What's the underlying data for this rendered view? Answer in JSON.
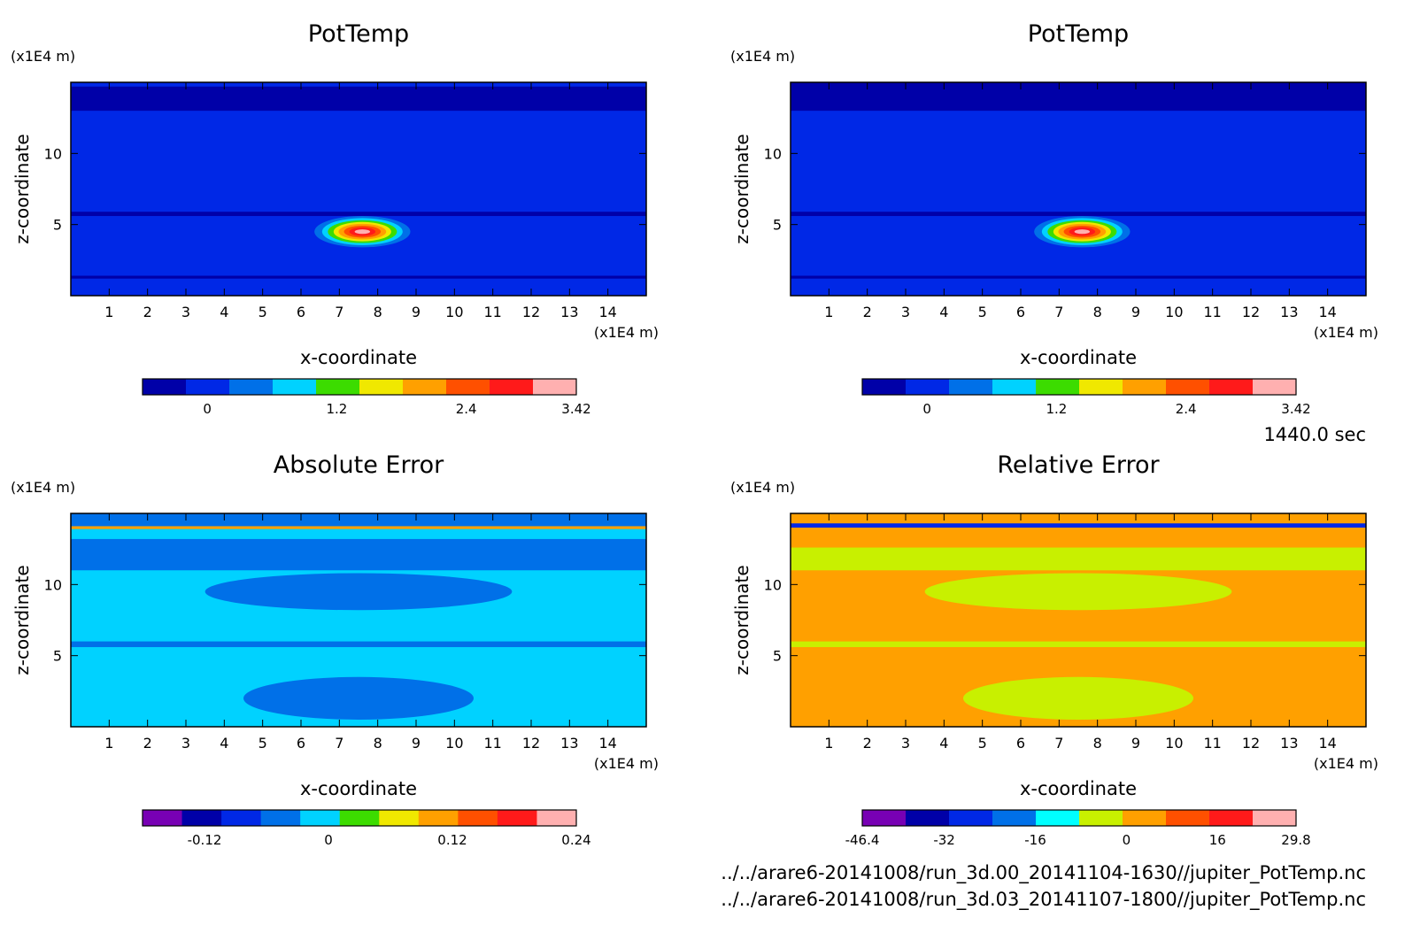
{
  "time_label": "1440.0 sec",
  "files": [
    "../../arare6-20141008/run_3d.00_20141104-1630//jupiter_PotTemp.nc",
    "../../arare6-20141008/run_3d.03_20141107-1800//jupiter_PotTemp.nc"
  ],
  "chart_data": [
    {
      "type": "heatmap",
      "title": "PotTemp",
      "xlabel": "x-coordinate",
      "ylabel": "z-coordinate",
      "x_unit": "(x1E4 m)",
      "y_unit": "(x1E4 m)",
      "xlim": [
        0,
        15
      ],
      "ylim": [
        0,
        15
      ],
      "x_ticks": [
        1,
        2,
        3,
        4,
        5,
        6,
        7,
        8,
        9,
        10,
        11,
        12,
        13,
        14
      ],
      "y_ticks": [
        5,
        10
      ],
      "colorbar": {
        "colors": [
          "#0000a8",
          "#0028e6",
          "#0070e8",
          "#00d2ff",
          "#3cdc00",
          "#f0e800",
          "#ffa000",
          "#ff5000",
          "#ff1a1a",
          "#ffb0b0"
        ],
        "tick_labels": [
          "0",
          "1.2",
          "2.4",
          "3.42"
        ],
        "tick_values": [
          0,
          1.2,
          2.4,
          3.42
        ],
        "range": [
          -0.6,
          3.42
        ]
      },
      "background": "#0028e6",
      "bands": [
        {
          "z": [
            13.0,
            14.7
          ],
          "color": "#0000a8"
        },
        {
          "z": [
            5.6,
            5.9
          ],
          "color": "#0000a8"
        },
        {
          "z": [
            1.2,
            1.4
          ],
          "color": "#0000a8"
        }
      ],
      "blobs": [
        {
          "x": 7.6,
          "z": 4.5,
          "rx": 1.25,
          "rz": 1.1,
          "color": "#0070e8"
        },
        {
          "x": 7.6,
          "z": 4.5,
          "rx": 1.05,
          "rz": 0.95,
          "color": "#00d2ff"
        },
        {
          "x": 7.6,
          "z": 4.5,
          "rx": 0.9,
          "rz": 0.8,
          "color": "#3cdc00"
        },
        {
          "x": 7.6,
          "z": 4.5,
          "rx": 0.75,
          "rz": 0.68,
          "color": "#f0e800"
        },
        {
          "x": 7.6,
          "z": 4.5,
          "rx": 0.62,
          "rz": 0.55,
          "color": "#ffa000"
        },
        {
          "x": 7.6,
          "z": 4.5,
          "rx": 0.48,
          "rz": 0.42,
          "color": "#ff5000"
        },
        {
          "x": 7.6,
          "z": 4.5,
          "rx": 0.34,
          "rz": 0.3,
          "color": "#ff1a1a"
        },
        {
          "x": 7.6,
          "z": 4.5,
          "rx": 0.2,
          "rz": 0.16,
          "color": "#ffb0b0"
        }
      ]
    },
    {
      "type": "heatmap",
      "title": "PotTemp",
      "xlabel": "x-coordinate",
      "ylabel": "z-coordinate",
      "x_unit": "(x1E4 m)",
      "y_unit": "(x1E4 m)",
      "xlim": [
        0,
        15
      ],
      "ylim": [
        0,
        15
      ],
      "x_ticks": [
        1,
        2,
        3,
        4,
        5,
        6,
        7,
        8,
        9,
        10,
        11,
        12,
        13,
        14
      ],
      "y_ticks": [
        5,
        10
      ],
      "colorbar": {
        "colors": [
          "#0000a8",
          "#0028e6",
          "#0070e8",
          "#00d2ff",
          "#3cdc00",
          "#f0e800",
          "#ffa000",
          "#ff5000",
          "#ff1a1a",
          "#ffb0b0"
        ],
        "tick_labels": [
          "0",
          "1.2",
          "2.4",
          "3.42"
        ],
        "tick_values": [
          0,
          1.2,
          2.4,
          3.42
        ],
        "range": [
          -0.6,
          3.42
        ]
      },
      "background": "#0028e6",
      "bands": [
        {
          "z": [
            13.0,
            15.0
          ],
          "color": "#0000a8"
        },
        {
          "z": [
            5.6,
            5.9
          ],
          "color": "#0000a8"
        },
        {
          "z": [
            1.2,
            1.4
          ],
          "color": "#0000a8"
        }
      ],
      "blobs": [
        {
          "x": 7.6,
          "z": 4.5,
          "rx": 1.25,
          "rz": 1.1,
          "color": "#0070e8"
        },
        {
          "x": 7.6,
          "z": 4.5,
          "rx": 1.05,
          "rz": 0.95,
          "color": "#00d2ff"
        },
        {
          "x": 7.6,
          "z": 4.5,
          "rx": 0.9,
          "rz": 0.8,
          "color": "#3cdc00"
        },
        {
          "x": 7.6,
          "z": 4.5,
          "rx": 0.75,
          "rz": 0.68,
          "color": "#f0e800"
        },
        {
          "x": 7.6,
          "z": 4.5,
          "rx": 0.62,
          "rz": 0.55,
          "color": "#ffa000"
        },
        {
          "x": 7.6,
          "z": 4.5,
          "rx": 0.48,
          "rz": 0.42,
          "color": "#ff5000"
        },
        {
          "x": 7.6,
          "z": 4.5,
          "rx": 0.34,
          "rz": 0.3,
          "color": "#ff1a1a"
        },
        {
          "x": 7.6,
          "z": 4.5,
          "rx": 0.2,
          "rz": 0.16,
          "color": "#ffb0b0"
        }
      ]
    },
    {
      "type": "heatmap",
      "title": "Absolute Error",
      "xlabel": "x-coordinate",
      "ylabel": "z-coordinate",
      "x_unit": "(x1E4 m)",
      "y_unit": "(x1E4 m)",
      "xlim": [
        0,
        15
      ],
      "ylim": [
        0,
        15
      ],
      "x_ticks": [
        1,
        2,
        3,
        4,
        5,
        6,
        7,
        8,
        9,
        10,
        11,
        12,
        13,
        14
      ],
      "y_ticks": [
        5,
        10
      ],
      "colorbar": {
        "colors": [
          "#7800b4",
          "#0000a8",
          "#0028e6",
          "#0070e8",
          "#00d2ff",
          "#3cdc00",
          "#f0e800",
          "#ffa000",
          "#ff5000",
          "#ff1a1a",
          "#ffb0b0"
        ],
        "tick_labels": [
          "-0.12",
          "0",
          "0.12",
          "0.24"
        ],
        "tick_values": [
          -0.12,
          0,
          0.12,
          0.24
        ],
        "range": [
          -0.18,
          0.24
        ]
      },
      "background": "#00d2ff",
      "bands": [
        {
          "z": [
            14.1,
            15.0
          ],
          "color": "#0070e8"
        },
        {
          "z": [
            13.9,
            14.1
          ],
          "color": "#ffa000"
        },
        {
          "z": [
            11.0,
            13.2
          ],
          "color": "#0070e8"
        },
        {
          "z": [
            5.6,
            6.0
          ],
          "color": "#0070e8"
        }
      ],
      "blobs": [
        {
          "x": 7.5,
          "z": 9.5,
          "rx": 4.0,
          "rz": 1.3,
          "color": "#0070e8"
        },
        {
          "x": 7.6,
          "z": 7.2,
          "rx": 2.2,
          "rz": 0.7,
          "color": "#00d2ff"
        },
        {
          "x": 7.5,
          "z": 2.0,
          "rx": 3.0,
          "rz": 1.5,
          "color": "#0070e8"
        }
      ]
    },
    {
      "type": "heatmap",
      "title": "Relative Error",
      "xlabel": "x-coordinate",
      "ylabel": "z-coordinate",
      "x_unit": "(x1E4 m)",
      "y_unit": "(x1E4 m)",
      "xlim": [
        0,
        15
      ],
      "ylim": [
        0,
        15
      ],
      "x_ticks": [
        1,
        2,
        3,
        4,
        5,
        6,
        7,
        8,
        9,
        10,
        11,
        12,
        13,
        14
      ],
      "y_ticks": [
        5,
        10
      ],
      "colorbar": {
        "colors": [
          "#7800b4",
          "#0000a8",
          "#0028e6",
          "#0070e8",
          "#00ffff",
          "#c8f000",
          "#ffa000",
          "#ff5000",
          "#ff1a1a",
          "#ffb0b0"
        ],
        "tick_labels": [
          "-46.4",
          "-32",
          "-16",
          "0",
          "16",
          "29.8"
        ],
        "tick_values": [
          -46.4,
          -32,
          -16,
          0,
          16,
          29.8
        ],
        "range": [
          -46.4,
          29.8
        ]
      },
      "background": "#ffa000",
      "bands": [
        {
          "z": [
            14.0,
            14.3
          ],
          "color": "#0028e6"
        },
        {
          "z": [
            11.0,
            12.6
          ],
          "color": "#c8f000"
        },
        {
          "z": [
            5.6,
            6.0
          ],
          "color": "#c8f000"
        }
      ],
      "blobs": [
        {
          "x": 7.5,
          "z": 9.5,
          "rx": 4.0,
          "rz": 1.3,
          "color": "#c8f000"
        },
        {
          "x": 7.6,
          "z": 7.2,
          "rx": 2.2,
          "rz": 0.7,
          "color": "#ffa000"
        },
        {
          "x": 7.5,
          "z": 2.0,
          "rx": 3.0,
          "rz": 1.5,
          "color": "#c8f000"
        }
      ]
    }
  ]
}
